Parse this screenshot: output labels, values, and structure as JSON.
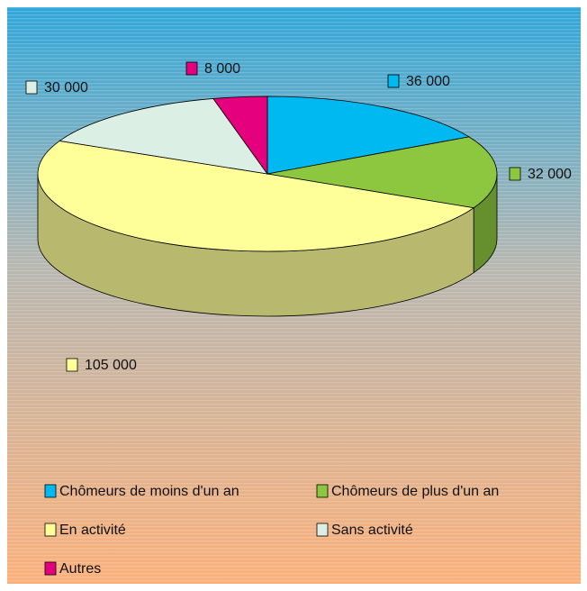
{
  "chart_data": {
    "type": "pie3d",
    "categories": [
      "Chômeurs de moins d'un an",
      "Chômeurs de plus d'un an",
      "En activité",
      "Sans activité",
      "Autres"
    ],
    "values": [
      36000,
      32000,
      105000,
      30000,
      8000
    ],
    "value_labels": [
      "36 000",
      "32 000",
      "105 000",
      "30 000",
      "8 000"
    ],
    "colors": [
      "#00b9f1",
      "#8dc63f",
      "#ffff99",
      "#dcefe4",
      "#e5007d"
    ],
    "legend": "bottom"
  }
}
